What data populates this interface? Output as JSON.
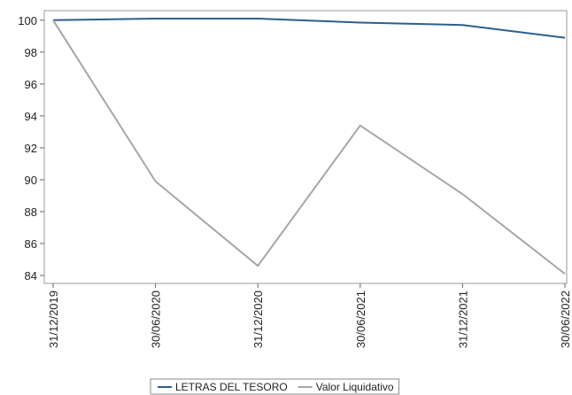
{
  "chart_data": {
    "type": "line",
    "categories": [
      "31/12/2019",
      "30/06/2020",
      "31/12/2020",
      "30/06/2021",
      "31/12/2021",
      "30/06/2022"
    ],
    "series": [
      {
        "name": "LETRAS DEL TESORO",
        "color": "#2e5e8c",
        "values": [
          100,
          100.1,
          100.1,
          99.85,
          99.7,
          98.9
        ]
      },
      {
        "name": "Valor Liquidativo",
        "color": "#a6a6a6",
        "values": [
          100,
          89.9,
          84.6,
          93.4,
          89.1,
          84.1
        ]
      }
    ],
    "ylim": [
      83.5,
      100.6
    ],
    "yticks": [
      84,
      86,
      88,
      90,
      92,
      94,
      96,
      98,
      100
    ]
  }
}
